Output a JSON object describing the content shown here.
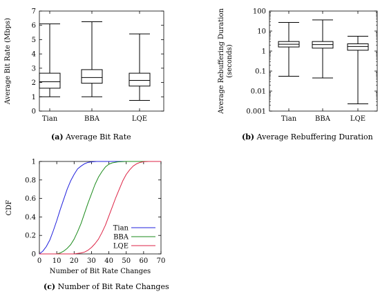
{
  "chart_data": [
    {
      "type": "box",
      "panel_label": "(a)",
      "caption": "Average Bit Rate",
      "ylabel": "Average Bit Rate (Mbps)",
      "categories": [
        "Tian",
        "BBA",
        "LQE"
      ],
      "ylim": [
        0,
        7
      ],
      "yticks": [
        0,
        1,
        2,
        3,
        4,
        5,
        6,
        7
      ],
      "log": false,
      "boxes": [
        {
          "min": 1.0,
          "q1": 1.6,
          "median": 2.05,
          "q3": 2.65,
          "max": 6.1
        },
        {
          "min": 1.0,
          "q1": 1.95,
          "median": 2.35,
          "q3": 2.9,
          "max": 6.25
        },
        {
          "min": 0.75,
          "q1": 1.75,
          "median": 2.15,
          "q3": 2.65,
          "max": 5.4
        }
      ]
    },
    {
      "type": "box",
      "panel_label": "(b)",
      "caption": "Average Rebuffering Duration",
      "ylabel": "Average Rebuffering Duration",
      "ylabel2": "(seconds)",
      "categories": [
        "Tian",
        "BBA",
        "LQE"
      ],
      "ylim": [
        0.001,
        100
      ],
      "yticks": [
        0.001,
        0.01,
        0.1,
        1,
        10,
        100
      ],
      "yticklabels": [
        "0.001",
        "0.01",
        "0.1",
        "1",
        "10",
        "100"
      ],
      "log": true,
      "boxes": [
        {
          "min": 0.055,
          "q1": 1.6,
          "median": 2.2,
          "q3": 3.0,
          "max": 27
        },
        {
          "min": 0.045,
          "q1": 1.4,
          "median": 2.1,
          "q3": 3.0,
          "max": 36
        },
        {
          "min": 0.0023,
          "q1": 1.1,
          "median": 1.7,
          "q3": 2.3,
          "max": 5.5
        }
      ]
    },
    {
      "type": "line",
      "panel_label": "(c)",
      "caption": "Number of Bit Rate Changes",
      "xlabel": "Number of Bit Rate Changes",
      "ylabel": "CDF",
      "xlim": [
        0,
        70
      ],
      "ylim": [
        0,
        1
      ],
      "xticks": [
        0,
        10,
        20,
        30,
        40,
        50,
        60,
        70
      ],
      "yticks": [
        0,
        0.2,
        0.4,
        0.6,
        0.8,
        1
      ],
      "yticklabels": [
        "0",
        "0.2",
        "0.4",
        "0.6",
        "0.8",
        "1"
      ],
      "legend": "bottom-right",
      "series": [
        {
          "name": "Tian",
          "color": "#1f1fdd",
          "x": [
            0,
            2,
            4,
            6,
            8,
            10,
            12,
            14,
            16,
            18,
            20,
            22,
            24,
            26,
            28,
            30,
            33,
            36,
            40,
            70
          ],
          "y": [
            0,
            0.03,
            0.08,
            0.15,
            0.25,
            0.36,
            0.48,
            0.59,
            0.7,
            0.79,
            0.86,
            0.92,
            0.95,
            0.975,
            0.99,
            0.995,
            1,
            1,
            1,
            1
          ]
        },
        {
          "name": "BBA",
          "color": "#1a8a1a",
          "x": [
            0,
            10,
            12,
            14,
            16,
            18,
            20,
            22,
            24,
            26,
            28,
            30,
            32,
            34,
            36,
            38,
            40,
            42,
            45,
            50,
            70
          ],
          "y": [
            0,
            0,
            0.01,
            0.03,
            0.06,
            0.1,
            0.16,
            0.24,
            0.33,
            0.44,
            0.55,
            0.65,
            0.75,
            0.83,
            0.89,
            0.94,
            0.97,
            0.985,
            0.995,
            1,
            1
          ]
        },
        {
          "name": "LQE",
          "color": "#dd2244",
          "x": [
            0,
            20,
            24,
            26,
            28,
            30,
            32,
            34,
            36,
            38,
            40,
            42,
            44,
            46,
            48,
            50,
            52,
            54,
            56,
            58,
            60,
            63,
            70
          ],
          "y": [
            0,
            0,
            0.01,
            0.02,
            0.04,
            0.07,
            0.11,
            0.16,
            0.23,
            0.31,
            0.41,
            0.51,
            0.61,
            0.7,
            0.79,
            0.86,
            0.91,
            0.95,
            0.975,
            0.99,
            0.997,
            1,
            1
          ]
        }
      ]
    }
  ]
}
